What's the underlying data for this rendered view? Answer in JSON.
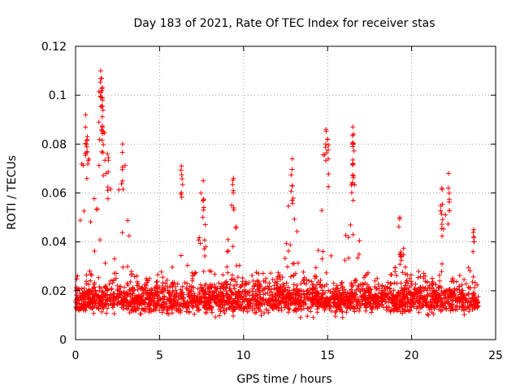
{
  "chart_data": {
    "type": "scatter",
    "title": "Day 183 of 2021, Rate Of TEC Index for receiver stas",
    "xlabel": "GPS time / hours",
    "ylabel": "ROTI / TECUs",
    "xlim": [
      0,
      25
    ],
    "ylim": [
      0,
      0.12
    ],
    "x_ticks": [
      "0",
      "5",
      "10",
      "15",
      "20",
      "25"
    ],
    "y_ticks": [
      "0",
      "0.02",
      "0.04",
      "0.06",
      "0.08",
      "0.1",
      "0.12"
    ],
    "grid": true,
    "marker": "+",
    "color": "#ff0000",
    "data_extent_hours": [
      0,
      24
    ],
    "baseline_band": [
      0.008,
      0.025
    ],
    "peaks": [
      {
        "x": 0.6,
        "y": 0.092
      },
      {
        "x": 0.7,
        "y": 0.083
      },
      {
        "x": 1.5,
        "y": 0.11
      },
      {
        "x": 1.6,
        "y": 0.103
      },
      {
        "x": 1.6,
        "y": 0.098
      },
      {
        "x": 1.6,
        "y": 0.087
      },
      {
        "x": 1.9,
        "y": 0.076
      },
      {
        "x": 2.8,
        "y": 0.08
      },
      {
        "x": 6.3,
        "y": 0.071
      },
      {
        "x": 7.6,
        "y": 0.065
      },
      {
        "x": 9.4,
        "y": 0.066
      },
      {
        "x": 12.9,
        "y": 0.074
      },
      {
        "x": 14.9,
        "y": 0.086
      },
      {
        "x": 15.0,
        "y": 0.082
      },
      {
        "x": 16.5,
        "y": 0.087
      },
      {
        "x": 16.5,
        "y": 0.08
      },
      {
        "x": 16.5,
        "y": 0.072
      },
      {
        "x": 19.3,
        "y": 0.05
      },
      {
        "x": 21.8,
        "y": 0.062
      },
      {
        "x": 22.2,
        "y": 0.068
      },
      {
        "x": 23.7,
        "y": 0.045
      }
    ]
  }
}
